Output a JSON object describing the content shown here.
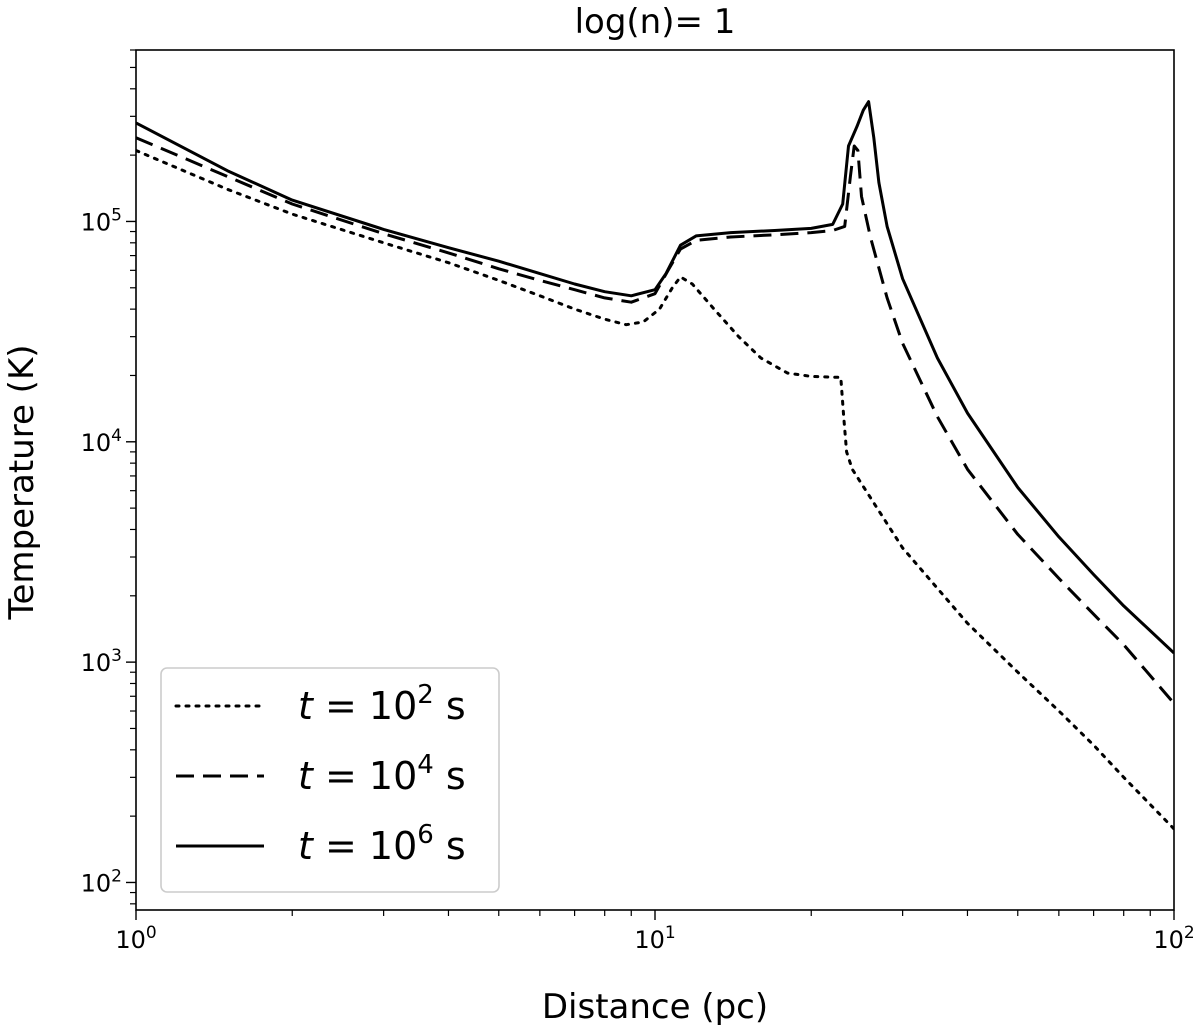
{
  "chart_data": {
    "type": "line",
    "title": "log(n)= 1",
    "xlabel": "Distance (pc)",
    "ylabel": "Temperature (K)",
    "xscale": "log",
    "yscale": "log",
    "xlim": [
      1,
      100
    ],
    "ylim": [
      75,
      600000
    ],
    "grid": false,
    "legend_position": "lower-left",
    "x_ticks": [
      {
        "value": 1,
        "mantissa": "10",
        "exp": "0"
      },
      {
        "value": 10,
        "mantissa": "10",
        "exp": "1"
      },
      {
        "value": 100,
        "mantissa": "10",
        "exp": "2"
      }
    ],
    "y_ticks": [
      {
        "value": 100,
        "mantissa": "10",
        "exp": "2"
      },
      {
        "value": 1000,
        "mantissa": "10",
        "exp": "3"
      },
      {
        "value": 10000,
        "mantissa": "10",
        "exp": "4"
      },
      {
        "value": 100000,
        "mantissa": "10",
        "exp": "5"
      }
    ],
    "series": [
      {
        "name": "t = 10^2 s",
        "legend": {
          "prefix": "t",
          "eq": " = 10",
          "exp": "2",
          "unit": " s"
        },
        "style": "dotted",
        "color": "#000000",
        "points": [
          [
            1.0,
            210000
          ],
          [
            1.5,
            140000
          ],
          [
            2.0,
            108000
          ],
          [
            3.0,
            80000
          ],
          [
            4.0,
            65000
          ],
          [
            5.0,
            54000
          ],
          [
            6.0,
            46000
          ],
          [
            7.0,
            40000
          ],
          [
            8.0,
            36000
          ],
          [
            8.8,
            34000
          ],
          [
            9.5,
            35000
          ],
          [
            10.2,
            40000
          ],
          [
            10.8,
            50000
          ],
          [
            11.2,
            56000
          ],
          [
            11.8,
            52000
          ],
          [
            13.0,
            40000
          ],
          [
            14.5,
            30000
          ],
          [
            16.0,
            24000
          ],
          [
            18.0,
            20500
          ],
          [
            20.0,
            19800
          ],
          [
            22.8,
            19600
          ],
          [
            23.1,
            13000
          ],
          [
            23.4,
            9000
          ],
          [
            24.0,
            7500
          ],
          [
            30.0,
            3300
          ],
          [
            40.0,
            1500
          ],
          [
            50.0,
            900
          ],
          [
            60.0,
            600
          ],
          [
            70.0,
            420
          ],
          [
            80.0,
            300
          ],
          [
            100.0,
            175
          ]
        ]
      },
      {
        "name": "t = 10^4 s",
        "legend": {
          "prefix": "t",
          "eq": " = 10",
          "exp": "4",
          "unit": " s"
        },
        "style": "dashed",
        "color": "#000000",
        "points": [
          [
            1.0,
            240000
          ],
          [
            1.5,
            160000
          ],
          [
            2.0,
            120000
          ],
          [
            3.0,
            88000
          ],
          [
            4.0,
            72000
          ],
          [
            5.0,
            61000
          ],
          [
            6.0,
            54000
          ],
          [
            7.0,
            49000
          ],
          [
            8.0,
            45000
          ],
          [
            9.0,
            43000
          ],
          [
            10.0,
            47000
          ],
          [
            10.6,
            60000
          ],
          [
            11.2,
            75000
          ],
          [
            12.0,
            82000
          ],
          [
            14.0,
            85000
          ],
          [
            17.0,
            87000
          ],
          [
            20.0,
            89000
          ],
          [
            22.0,
            91000
          ],
          [
            23.2,
            95000
          ],
          [
            23.8,
            160000
          ],
          [
            24.2,
            220000
          ],
          [
            24.6,
            210000
          ],
          [
            25.0,
            130000
          ],
          [
            26.0,
            85000
          ],
          [
            28.0,
            45000
          ],
          [
            30.0,
            28000
          ],
          [
            35.0,
            13000
          ],
          [
            40.0,
            7500
          ],
          [
            50.0,
            3800
          ],
          [
            60.0,
            2400
          ],
          [
            70.0,
            1650
          ],
          [
            80.0,
            1200
          ],
          [
            100.0,
            650
          ]
        ]
      },
      {
        "name": "t = 10^6 s",
        "legend": {
          "prefix": "t",
          "eq": " = 10",
          "exp": "6",
          "unit": " s"
        },
        "style": "solid",
        "color": "#000000",
        "points": [
          [
            1.0,
            280000
          ],
          [
            1.5,
            170000
          ],
          [
            2.0,
            125000
          ],
          [
            3.0,
            92000
          ],
          [
            4.0,
            76000
          ],
          [
            5.0,
            66000
          ],
          [
            6.0,
            58000
          ],
          [
            7.0,
            52000
          ],
          [
            8.0,
            48000
          ],
          [
            9.0,
            46000
          ],
          [
            10.0,
            49000
          ],
          [
            10.5,
            58000
          ],
          [
            11.2,
            78000
          ],
          [
            12.0,
            86000
          ],
          [
            14.0,
            89000
          ],
          [
            17.0,
            91000
          ],
          [
            20.0,
            93000
          ],
          [
            22.0,
            97000
          ],
          [
            23.0,
            120000
          ],
          [
            23.6,
            220000
          ],
          [
            24.5,
            270000
          ],
          [
            25.2,
            320000
          ],
          [
            25.8,
            350000
          ],
          [
            26.4,
            240000
          ],
          [
            27.0,
            150000
          ],
          [
            28.0,
            95000
          ],
          [
            30.0,
            55000
          ],
          [
            35.0,
            24000
          ],
          [
            40.0,
            13500
          ],
          [
            50.0,
            6200
          ],
          [
            60.0,
            3700
          ],
          [
            70.0,
            2500
          ],
          [
            80.0,
            1800
          ],
          [
            100.0,
            1100
          ]
        ]
      }
    ]
  }
}
